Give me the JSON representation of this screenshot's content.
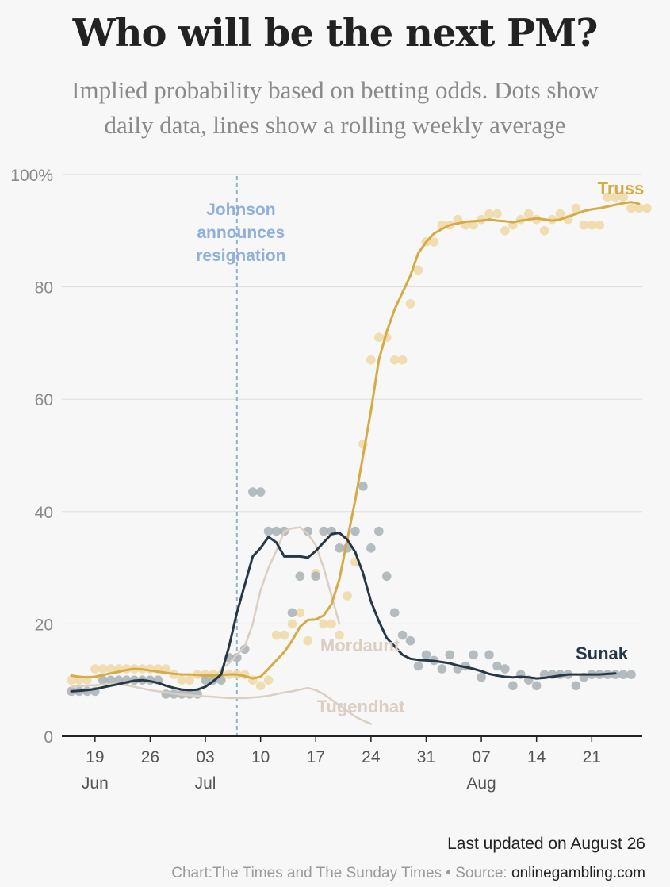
{
  "header": {
    "title": "Who will be the next PM?",
    "subtitle_line1": "Implied probability based on betting odds. Dots show",
    "subtitle_line2": "daily data, lines show a rolling weekly average"
  },
  "footer": {
    "updated": "Last updated on August 26",
    "credit_prefix": "Chart:The Times and The Sunday Times • Source: ",
    "credit_source": "onlinegambling.com"
  },
  "colors": {
    "truss": "#d6aa45",
    "truss_dots": "#efd8a4",
    "sunak": "#263746",
    "sunak_dots": "#a9b1b5",
    "others": "#dacfc2",
    "annotation": "#8fb0d9",
    "grid": "#dddddd",
    "axis_text": "#8a8a8a"
  },
  "chart_data": {
    "type": "line",
    "x_start": "2022-06-16",
    "x_end": "2022-08-26",
    "ylim": [
      0,
      100
    ],
    "y_ticks": [
      0,
      20,
      40,
      60,
      80,
      100
    ],
    "y_tick_labels": [
      "0",
      "20",
      "40",
      "60",
      "80",
      "100%"
    ],
    "x_ticks": [
      {
        "date": "2022-06-19",
        "label": "19",
        "month": "Jun"
      },
      {
        "date": "2022-06-26",
        "label": "26",
        "month": ""
      },
      {
        "date": "2022-07-03",
        "label": "03",
        "month": "Jul"
      },
      {
        "date": "2022-07-10",
        "label": "10",
        "month": ""
      },
      {
        "date": "2022-07-17",
        "label": "17",
        "month": ""
      },
      {
        "date": "2022-07-24",
        "label": "24",
        "month": ""
      },
      {
        "date": "2022-07-31",
        "label": "31",
        "month": ""
      },
      {
        "date": "2022-08-07",
        "label": "07",
        "month": "Aug"
      },
      {
        "date": "2022-08-14",
        "label": "14",
        "month": ""
      },
      {
        "date": "2022-08-21",
        "label": "21",
        "month": ""
      }
    ],
    "annotation": {
      "date": "2022-07-07",
      "lines": [
        "Johnson",
        "announces",
        "resignation"
      ]
    },
    "series": [
      {
        "name": "Truss",
        "start": "2022-06-16",
        "dots": [
          10,
          10,
          10,
          12,
          12,
          12,
          12,
          12,
          12,
          12,
          12,
          12,
          12,
          11,
          10,
          10,
          11,
          11,
          11,
          11,
          11,
          11,
          11,
          10,
          9,
          10,
          18,
          18,
          20,
          22,
          17,
          29,
          20,
          20,
          18,
          25,
          31,
          52,
          67,
          71,
          71,
          67,
          67,
          77,
          83,
          88,
          88,
          91,
          91,
          92,
          91,
          91,
          92,
          93,
          93,
          90,
          91,
          92,
          93,
          92,
          90,
          92,
          93,
          92,
          94,
          91,
          91,
          91,
          96,
          96,
          96,
          94,
          94,
          94
        ],
        "line": [
          10.8,
          10.6,
          10.5,
          10.6,
          10.9,
          11.2,
          11.5,
          11.8,
          12.0,
          11.9,
          11.7,
          11.5,
          11.3,
          11.1,
          11.0,
          11.0,
          10.9,
          10.8,
          10.8,
          10.9,
          11.0,
          11.0,
          10.7,
          10.3,
          10.6,
          12.0,
          13.5,
          15.0,
          17.0,
          19.5,
          20.7,
          20.8,
          21.5,
          23.5,
          28.0,
          35.0,
          42.0,
          50.0,
          58.0,
          67.0,
          72.0,
          76.0,
          79.0,
          82.0,
          86.0,
          88.0,
          89.5,
          90.3,
          91.0,
          91.3,
          91.6,
          91.7,
          91.8,
          92.0,
          91.8,
          91.7,
          91.5,
          91.8,
          92.0,
          92.2,
          92.0,
          91.8,
          92.0,
          92.5,
          93.0,
          93.5,
          93.8,
          94.0,
          94.3,
          94.6,
          94.9,
          95.1,
          94.8
        ],
        "label": "Truss"
      },
      {
        "name": "Sunak",
        "start": "2022-06-16",
        "dots": [
          8,
          8,
          8,
          8,
          10,
          10,
          10,
          10,
          10,
          10,
          10,
          10,
          7.5,
          7.5,
          7.5,
          7.5,
          7.5,
          10,
          10,
          10,
          14,
          14,
          15.5,
          43.5,
          43.5,
          36.5,
          36.5,
          36.5,
          22,
          28.5,
          36.5,
          28.5,
          36.5,
          36.5,
          33.5,
          33.5,
          36.5,
          44.5,
          33.5,
          36.5,
          28.5,
          22,
          18,
          17,
          12.5,
          14.5,
          13.5,
          12,
          14.5,
          12,
          12.5,
          14.5,
          10.5,
          14.5,
          12.5,
          12,
          9,
          11,
          10,
          9,
          11,
          11,
          11,
          11,
          9,
          10.5,
          11,
          11,
          11,
          11,
          11,
          11
        ],
        "line": [
          8.0,
          8.1,
          8.2,
          8.4,
          8.7,
          9.0,
          9.3,
          9.6,
          9.9,
          10.0,
          9.8,
          9.5,
          9.0,
          8.6,
          8.3,
          8.2,
          8.3,
          8.8,
          9.8,
          11.0,
          16.0,
          22.0,
          27.0,
          32.0,
          33.5,
          35.5,
          34.5,
          32.0,
          32.0,
          32.0,
          31.8,
          33.0,
          34.5,
          36.0,
          36.2,
          35.0,
          32.8,
          29.0,
          24.0,
          20.5,
          17.5,
          16.0,
          14.5,
          13.8,
          13.6,
          13.5,
          13.4,
          13.2,
          13.0,
          12.6,
          12.3,
          12.0,
          11.6,
          11.1,
          10.8,
          10.6,
          10.5,
          10.6,
          10.5,
          10.3,
          10.4,
          10.6,
          10.8,
          11.0,
          11.0,
          11.0,
          11.0,
          11.0,
          11.1,
          11.2
        ],
        "label": "Sunak"
      },
      {
        "name": "Mordaunt",
        "start": "2022-07-05",
        "line": [
          12,
          13,
          14.5,
          16,
          20,
          26,
          30,
          33,
          36.5,
          37,
          37.2,
          36,
          34,
          30,
          25,
          20
        ],
        "label": "Mordaunt"
      },
      {
        "name": "Tugendhat",
        "start": "2022-06-16",
        "line": [
          8.8,
          8.9,
          9.0,
          9.1,
          9.2,
          9.3,
          9.3,
          9.1,
          8.8,
          8.5,
          8.2,
          8.0,
          7.8,
          7.6,
          7.4,
          7.3,
          7.2,
          7.1,
          7.0,
          6.9,
          6.8,
          6.8,
          6.8,
          6.9,
          7.0,
          7.2,
          7.5,
          7.8,
          8.0,
          8.3,
          8.6,
          8.2,
          7.5,
          6.5,
          5.5,
          4.5,
          3.5,
          2.8,
          2.2
        ],
        "label": "Tugendhat"
      }
    ]
  }
}
